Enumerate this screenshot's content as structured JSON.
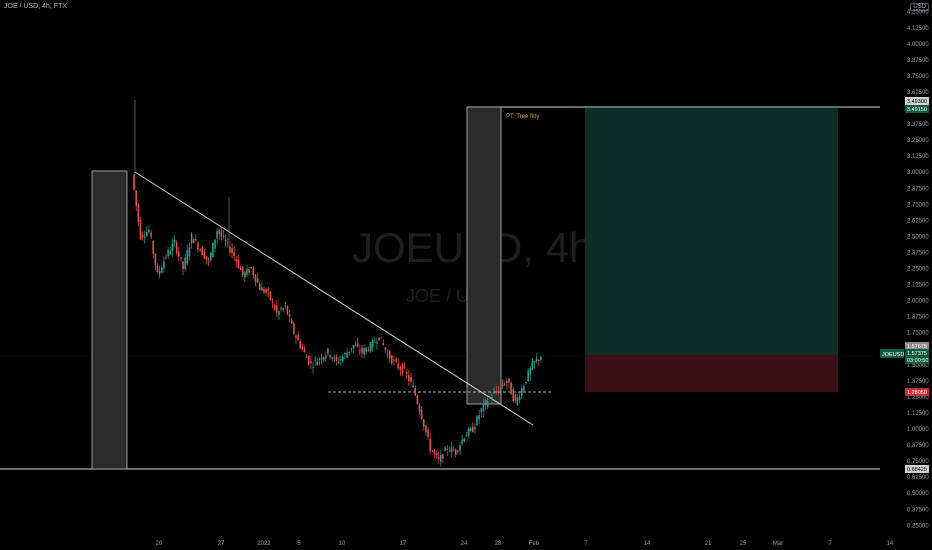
{
  "header": {
    "title": "JOE / USD, 4h, FTX",
    "currency": "USD"
  },
  "watermark": {
    "symbol": "JOEUSD, 4h",
    "pair": "JOE / USD"
  },
  "annotation_pt": "PT: Tree fitty",
  "price_labels": {
    "target_a": "3.49300",
    "target_b": "3.49150",
    "entry": "1.57675",
    "current_symbol": "JOEUSD",
    "current_price": "1.57375",
    "countdown": "03:00:50",
    "stop": "1.28050",
    "base": "0.68425"
  },
  "colors": {
    "background": "#000000",
    "candle_up": "#26a69a",
    "candle_down": "#ef5350",
    "profit_zone": "#0d2e27",
    "loss_zone": "#3a0f15",
    "box_fill": "#2b2b2b",
    "label_green": "#0e5b3e",
    "label_red": "#c2303a",
    "pt_text": "#d6a700"
  },
  "chart_data": {
    "type": "candlestick",
    "title": "JOE / USD, 4h, FTX",
    "ylim": [
      0.2,
      4.3
    ],
    "yticks": [
      "4.25000",
      "4.12500",
      "4.00000",
      "3.87500",
      "3.75000",
      "3.62500",
      "3.50000",
      "3.37500",
      "3.25000",
      "3.12500",
      "3.00000",
      "2.87500",
      "2.75000",
      "2.62500",
      "2.50000",
      "2.37500",
      "2.25000",
      "2.12500",
      "2.00000",
      "1.87500",
      "1.75000",
      "1.62500",
      "1.50000",
      "1.37500",
      "1.25000",
      "1.12500",
      "1.00000",
      "0.87500",
      "0.75000",
      "0.62500",
      "0.50000",
      "0.37500",
      "0.25000"
    ],
    "xticks": [
      "20",
      "27",
      "2022",
      "5",
      "10",
      "17",
      "24",
      "28",
      "Feb",
      "7",
      "14",
      "21",
      "25",
      "Mar",
      "7",
      "14"
    ],
    "price_path": [
      [
        2.98,
        3.05,
        2.55,
        2.5
      ],
      [
        2.5,
        2.62,
        2.3,
        2.55
      ],
      [
        2.55,
        2.6,
        2.1,
        2.2
      ],
      [
        2.2,
        2.4,
        1.95,
        2.35
      ],
      [
        2.35,
        2.55,
        2.25,
        2.45
      ],
      [
        2.45,
        2.5,
        2.15,
        2.25
      ],
      [
        2.25,
        2.55,
        2.2,
        2.5
      ],
      [
        2.5,
        2.6,
        2.35,
        2.4
      ],
      [
        2.4,
        2.48,
        2.2,
        2.3
      ],
      [
        2.3,
        2.7,
        2.25,
        2.55
      ],
      [
        2.55,
        2.8,
        2.4,
        2.45
      ],
      [
        2.45,
        2.55,
        2.25,
        2.35
      ],
      [
        2.35,
        2.4,
        2.1,
        2.2
      ],
      [
        2.2,
        2.35,
        2.05,
        2.25
      ],
      [
        2.25,
        2.28,
        2.05,
        2.1
      ],
      [
        2.1,
        2.18,
        1.95,
        2.05
      ],
      [
        2.05,
        2.12,
        1.85,
        1.9
      ],
      [
        1.9,
        2.0,
        1.78,
        1.95
      ],
      [
        1.95,
        1.98,
        1.7,
        1.75
      ],
      [
        1.75,
        1.82,
        1.58,
        1.62
      ],
      [
        1.62,
        1.7,
        1.45,
        1.5
      ],
      [
        1.5,
        1.58,
        1.4,
        1.55
      ],
      [
        1.55,
        1.65,
        1.5,
        1.6
      ],
      [
        1.6,
        1.68,
        1.48,
        1.52
      ],
      [
        1.52,
        1.6,
        1.45,
        1.58
      ],
      [
        1.58,
        1.7,
        1.52,
        1.65
      ],
      [
        1.65,
        1.72,
        1.55,
        1.6
      ],
      [
        1.6,
        1.68,
        1.52,
        1.65
      ],
      [
        1.65,
        1.78,
        1.6,
        1.72
      ],
      [
        1.72,
        1.75,
        1.55,
        1.58
      ],
      [
        1.58,
        1.62,
        1.45,
        1.5
      ],
      [
        1.5,
        1.55,
        1.38,
        1.45
      ],
      [
        1.45,
        1.48,
        1.28,
        1.32
      ],
      [
        1.32,
        1.35,
        1.05,
        1.1
      ],
      [
        1.1,
        1.15,
        0.8,
        0.85
      ],
      [
        0.85,
        0.95,
        0.69,
        0.75
      ],
      [
        0.75,
        0.88,
        0.7,
        0.85
      ],
      [
        0.85,
        0.92,
        0.78,
        0.82
      ],
      [
        0.82,
        0.98,
        0.8,
        0.95
      ],
      [
        0.95,
        1.05,
        0.88,
        1.0
      ],
      [
        1.0,
        1.2,
        0.95,
        1.15
      ],
      [
        1.15,
        1.28,
        1.08,
        1.25
      ],
      [
        1.25,
        1.35,
        1.18,
        1.3
      ],
      [
        1.3,
        1.42,
        1.22,
        1.38
      ],
      [
        1.38,
        1.45,
        1.15,
        1.2
      ],
      [
        1.2,
        1.4,
        1.18,
        1.35
      ],
      [
        1.35,
        1.55,
        1.3,
        1.5
      ],
      [
        1.5,
        1.62,
        1.42,
        1.57
      ]
    ],
    "levels": {
      "stop_loss": 1.2805,
      "entry": 1.57675,
      "target": 3.493,
      "base": 0.68425,
      "support_dashed": 1.3
    },
    "annotations": [
      "PT: Tree fitty"
    ]
  }
}
